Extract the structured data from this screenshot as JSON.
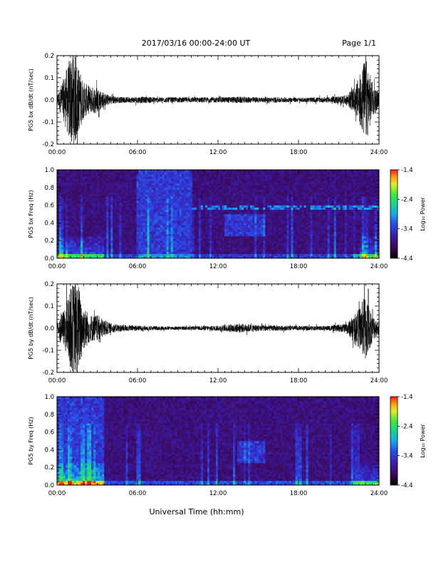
{
  "header": {
    "title": "2017/03/16  00:00-24:00 UT",
    "page": "Page 1/1"
  },
  "footer": {
    "xlabel": "Universal Time (hh:mm)"
  },
  "chart_data": [
    {
      "type": "line",
      "ylabel": "PG5 bx dB/dt (nT/sec)",
      "xlabel": "",
      "xlim": [
        0,
        24
      ],
      "ylim": [
        -0.2,
        0.2
      ],
      "x_tick_labels": [
        "00:00",
        "06:00",
        "12:00",
        "18:00",
        "24:00"
      ],
      "y_tick_labels": [
        "-0.2",
        "-0.1",
        "0.0",
        "0.1",
        "0.2"
      ],
      "envelope": {
        "hours": [
          0,
          0.5,
          1.0,
          1.3,
          1.6,
          2.0,
          2.5,
          3.0,
          3.5,
          4.0,
          5.0,
          6.0,
          8.0,
          10.0,
          12.0,
          13.5,
          15.0,
          16.5,
          18.0,
          20.0,
          21.5,
          22.2,
          22.6,
          23.0,
          23.5,
          24.0
        ],
        "amplitude": [
          0.02,
          0.1,
          0.2,
          0.22,
          0.15,
          0.08,
          0.06,
          0.06,
          0.03,
          0.02,
          0.012,
          0.015,
          0.012,
          0.012,
          0.012,
          0.015,
          0.012,
          0.012,
          0.01,
          0.012,
          0.02,
          0.06,
          0.12,
          0.2,
          0.08,
          0.03
        ]
      }
    },
    {
      "type": "heatmap",
      "ylabel": "PG5 bx Freq (Hz)",
      "xlabel": "",
      "xlim": [
        0,
        24
      ],
      "ylim": [
        0,
        1.0
      ],
      "x_tick_labels": [
        "00:00",
        "06:00",
        "12:00",
        "18:00",
        "24:00"
      ],
      "y_tick_labels": [
        "0.0",
        "0.2",
        "0.4",
        "0.6",
        "0.8",
        "1.0"
      ],
      "colorbar": {
        "label": "Log₁₀ Power",
        "range": [
          -4.4,
          -1.4
        ],
        "tick_labels": [
          "-1.4",
          "-2.4",
          "-3.4",
          "-4.4"
        ]
      },
      "features": {
        "low_freq_band_level": -3.6,
        "mid_activity_hours": [
          6.0,
          10.0
        ],
        "line_0_57hz_hours": [
          10.0,
          24.0
        ],
        "blob_hours": [
          12.5,
          15.5
        ]
      }
    },
    {
      "type": "line",
      "ylabel": "PG5 by dB/dt (nT/sec)",
      "xlabel": "",
      "xlim": [
        0,
        24
      ],
      "ylim": [
        -0.2,
        0.2
      ],
      "x_tick_labels": [
        "00:00",
        "06:00",
        "12:00",
        "18:00",
        "24:00"
      ],
      "y_tick_labels": [
        "-0.2",
        "-0.1",
        "0.0",
        "0.1",
        "0.2"
      ],
      "envelope": {
        "hours": [
          0,
          0.5,
          1.0,
          1.3,
          1.6,
          2.0,
          2.5,
          3.0,
          3.5,
          4.0,
          5.0,
          6.0,
          8.0,
          10.0,
          12.0,
          13.5,
          15.0,
          16.5,
          18.0,
          20.0,
          21.5,
          22.2,
          22.6,
          23.0,
          23.5,
          24.0
        ],
        "amplitude": [
          0.02,
          0.08,
          0.18,
          0.22,
          0.2,
          0.1,
          0.06,
          0.06,
          0.04,
          0.02,
          0.015,
          0.012,
          0.008,
          0.008,
          0.012,
          0.02,
          0.015,
          0.012,
          0.01,
          0.01,
          0.02,
          0.06,
          0.1,
          0.16,
          0.06,
          0.03
        ]
      }
    },
    {
      "type": "heatmap",
      "ylabel": "PG5 by Freq (Hz)",
      "xlabel": "",
      "xlim": [
        0,
        24
      ],
      "ylim": [
        0,
        1.0
      ],
      "x_tick_labels": [
        "00:00",
        "06:00",
        "12:00",
        "18:00",
        "24:00"
      ],
      "y_tick_labels": [
        "0.0",
        "0.2",
        "0.4",
        "0.6",
        "0.8",
        "1.0"
      ],
      "colorbar": {
        "label": "Log₁₀ Power",
        "range": [
          -4.4,
          -1.4
        ],
        "tick_labels": [
          "-1.4",
          "-2.4",
          "-3.4",
          "-4.4"
        ]
      },
      "features": {
        "low_freq_band_level": -3.5,
        "mid_activity_hours": [
          0,
          3.5
        ],
        "blob_hours": [
          13.5,
          15.5
        ]
      }
    }
  ]
}
